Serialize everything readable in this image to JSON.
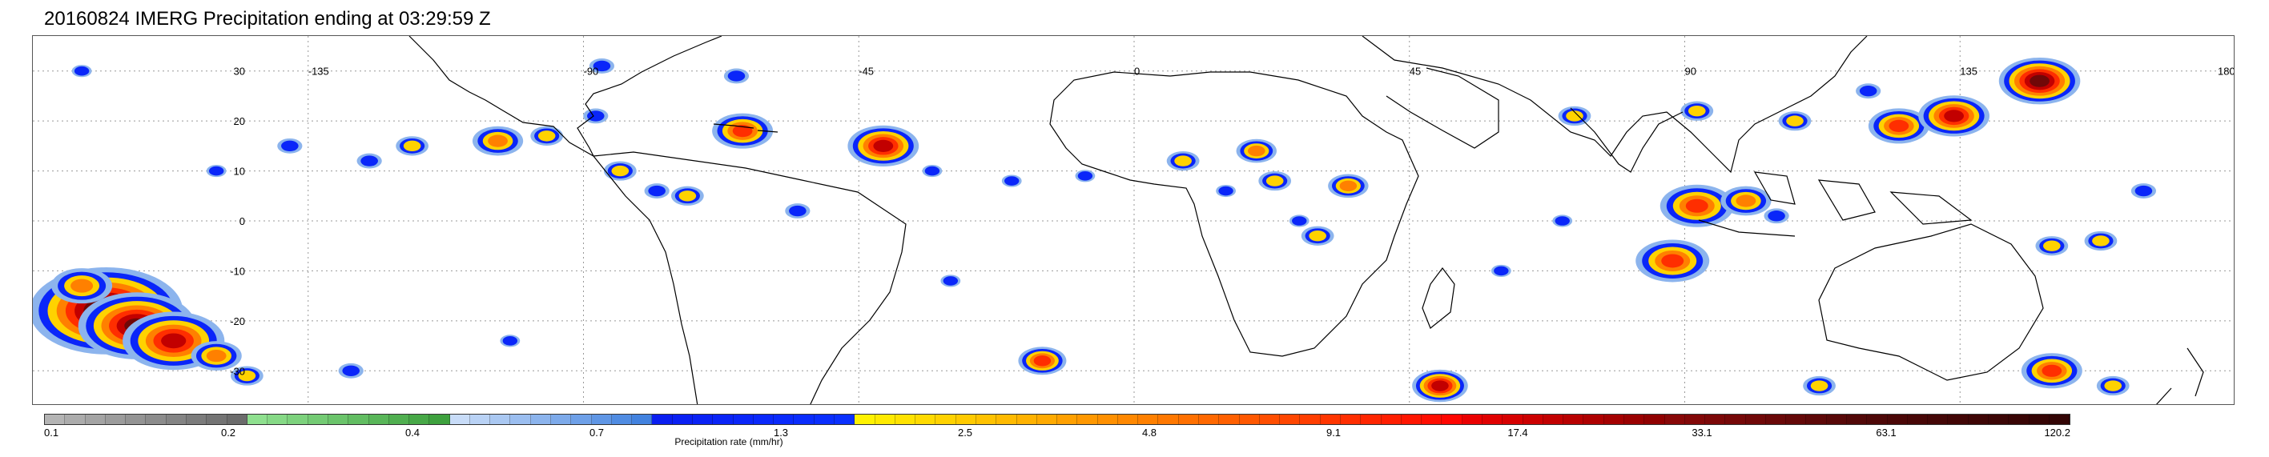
{
  "title": "20160824 IMERG Precipitation ending at 03:29:59 Z",
  "map": {
    "lon_labels": [
      "-135",
      "-90",
      "-45",
      "0",
      "45",
      "90",
      "135",
      "180"
    ],
    "lat_labels": [
      "30",
      "20",
      "10",
      "0",
      "-10",
      "-20",
      "-30"
    ],
    "grid": true,
    "land_outline_color": "#000000"
  },
  "colorbar": {
    "title": "Precipitation rate (mm/hr)",
    "labels": [
      "0.1",
      "0.2",
      "0.4",
      "0.7",
      "1.3",
      "2.5",
      "4.8",
      "9.1",
      "17.4",
      "33.1",
      "63.1",
      "120.2"
    ],
    "colors": [
      "#b4b4b4",
      "#acacac",
      "#a4a4a4",
      "#9c9c9c",
      "#949494",
      "#8c8c8c",
      "#848484",
      "#7c7c7c",
      "#747474",
      "#6c6c6c",
      "#8fe08f",
      "#86d986",
      "#7dd27d",
      "#74cb74",
      "#6bc46b",
      "#62bd62",
      "#59b659",
      "#50af50",
      "#47a847",
      "#3ea13e",
      "#c8dcf8",
      "#b9d2f5",
      "#aac8f2",
      "#9bbef0",
      "#8cb4ed",
      "#7daaea",
      "#6ea0e8",
      "#5f96e5",
      "#508ce2",
      "#4282df",
      "#0a1ef0",
      "#0a20f3",
      "#0a22f5",
      "#0a24f7",
      "#0a26f9",
      "#0a28fb",
      "#0a2afc",
      "#0a2cfd",
      "#0a2efe",
      "#0a30ff",
      "#fff200",
      "#ffea00",
      "#ffe200",
      "#ffda00",
      "#ffd200",
      "#ffca00",
      "#ffc200",
      "#ffba00",
      "#ffb200",
      "#ffaa00",
      "#ffa000",
      "#ff9800",
      "#ff9000",
      "#ff8800",
      "#ff8000",
      "#ff7800",
      "#ff7000",
      "#ff6800",
      "#ff6000",
      "#ff5800",
      "#ff4e00",
      "#ff4600",
      "#ff3e00",
      "#ff3600",
      "#ff2e00",
      "#ff2600",
      "#ff1e00",
      "#ff1600",
      "#ff0e00",
      "#ff0600",
      "#ea0000",
      "#e00000",
      "#d60000",
      "#cc0000",
      "#c20000",
      "#b80000",
      "#ae0000",
      "#a40000",
      "#9a0000",
      "#900000",
      "#880808",
      "#820808",
      "#7c0808",
      "#760808",
      "#700808",
      "#6a0808",
      "#640808",
      "#5e0808",
      "#580808",
      "#520808",
      "#4e0808",
      "#4b0707",
      "#480707",
      "#450707",
      "#420606",
      "#3f0606",
      "#3c0606",
      "#390505",
      "#360505",
      "#330505"
    ]
  },
  "precip_cells": [
    {
      "lon": -168,
      "lat": -18,
      "level": 9,
      "size": 7
    },
    {
      "lon": -163,
      "lat": -21,
      "level": 8,
      "size": 6
    },
    {
      "lon": -157,
      "lat": -24,
      "level": 7,
      "size": 6
    },
    {
      "lon": -172,
      "lat": -13,
      "level": 5,
      "size": 5
    },
    {
      "lon": -150,
      "lat": -27,
      "level": 5,
      "size": 4
    },
    {
      "lon": -145,
      "lat": -31,
      "level": 4,
      "size": 3
    },
    {
      "lon": -138,
      "lat": 15,
      "level": 3,
      "size": 3
    },
    {
      "lon": -125,
      "lat": 12,
      "level": 3,
      "size": 3
    },
    {
      "lon": -118,
      "lat": 15,
      "level": 4,
      "size": 3
    },
    {
      "lon": -104,
      "lat": 16,
      "level": 5,
      "size": 4
    },
    {
      "lon": -96,
      "lat": 17,
      "level": 4,
      "size": 3
    },
    {
      "lon": -88,
      "lat": 21,
      "level": 3,
      "size": 3
    },
    {
      "lon": -84,
      "lat": 10,
      "level": 4,
      "size": 3
    },
    {
      "lon": -78,
      "lat": 6,
      "level": 3,
      "size": 3
    },
    {
      "lon": -73,
      "lat": 5,
      "level": 4,
      "size": 3
    },
    {
      "lon": -87,
      "lat": 31,
      "level": 3,
      "size": 3
    },
    {
      "lon": -65,
      "lat": 29,
      "level": 3,
      "size": 3
    },
    {
      "lon": -64,
      "lat": 18,
      "level": 6,
      "size": 4
    },
    {
      "lon": -55,
      "lat": 2,
      "level": 3,
      "size": 3
    },
    {
      "lon": -41,
      "lat": 15,
      "level": 7,
      "size": 4
    },
    {
      "lon": -33,
      "lat": 10,
      "level": 3,
      "size": 2
    },
    {
      "lon": -20,
      "lat": 8,
      "level": 3,
      "size": 2
    },
    {
      "lon": -8,
      "lat": 9,
      "level": 3,
      "size": 2
    },
    {
      "lon": 8,
      "lat": 12,
      "level": 4,
      "size": 3
    },
    {
      "lon": 20,
      "lat": 14,
      "level": 5,
      "size": 3
    },
    {
      "lon": 23,
      "lat": 8,
      "level": 4,
      "size": 3
    },
    {
      "lon": 27,
      "lat": 0,
      "level": 3,
      "size": 2
    },
    {
      "lon": 35,
      "lat": 7,
      "level": 5,
      "size": 3
    },
    {
      "lon": 15,
      "lat": 6,
      "level": 3,
      "size": 2
    },
    {
      "lon": 30,
      "lat": -3,
      "level": 4,
      "size": 3
    },
    {
      "lon": 50,
      "lat": -33,
      "level": 7,
      "size": 3
    },
    {
      "lon": 72,
      "lat": 21,
      "level": 4,
      "size": 3
    },
    {
      "lon": 92,
      "lat": 22,
      "level": 4,
      "size": 3
    },
    {
      "lon": 88,
      "lat": -8,
      "level": 6,
      "size": 5
    },
    {
      "lon": 92,
      "lat": 3,
      "level": 6,
      "size": 5
    },
    {
      "lon": 100,
      "lat": 4,
      "level": 5,
      "size": 4
    },
    {
      "lon": 105,
      "lat": 1,
      "level": 3,
      "size": 3
    },
    {
      "lon": 108,
      "lat": 20,
      "level": 4,
      "size": 3
    },
    {
      "lon": 125,
      "lat": 19,
      "level": 6,
      "size": 4
    },
    {
      "lon": 134,
      "lat": 21,
      "level": 7,
      "size": 4
    },
    {
      "lon": 148,
      "lat": 28,
      "level": 8,
      "size": 4
    },
    {
      "lon": 120,
      "lat": 26,
      "level": 3,
      "size": 3
    },
    {
      "lon": 150,
      "lat": -5,
      "level": 4,
      "size": 3
    },
    {
      "lon": 158,
      "lat": -4,
      "level": 4,
      "size": 3
    },
    {
      "lon": 165,
      "lat": 6,
      "level": 3,
      "size": 3
    },
    {
      "lon": 150,
      "lat": -30,
      "level": 6,
      "size": 4
    },
    {
      "lon": 160,
      "lat": -33,
      "level": 4,
      "size": 3
    },
    {
      "lon": 112,
      "lat": -33,
      "level": 4,
      "size": 3
    },
    {
      "lon": -128,
      "lat": -30,
      "level": 3,
      "size": 3
    },
    {
      "lon": -102,
      "lat": -24,
      "level": 3,
      "size": 2
    },
    {
      "lon": -15,
      "lat": -28,
      "level": 6,
      "size": 3
    },
    {
      "lon": -30,
      "lat": -12,
      "level": 3,
      "size": 2
    },
    {
      "lon": 60,
      "lat": -10,
      "level": 3,
      "size": 2
    },
    {
      "lon": 70,
      "lat": 0,
      "level": 3,
      "size": 2
    },
    {
      "lon": -150,
      "lat": 10,
      "level": 3,
      "size": 2
    },
    {
      "lon": -172,
      "lat": 30,
      "level": 3,
      "size": 2
    }
  ]
}
